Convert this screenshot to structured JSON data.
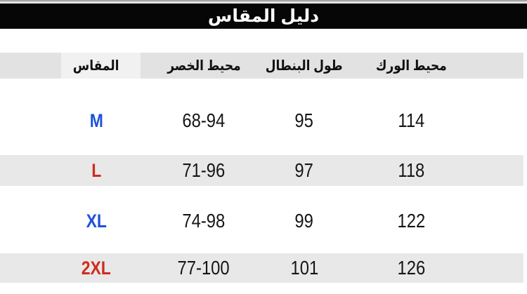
{
  "title": "دليل المقاس",
  "colors": {
    "size_blue": "#1c52d9",
    "size_red": "#cf2c1e"
  },
  "table": {
    "columns": [
      {
        "key": "size",
        "label": "المقاس"
      },
      {
        "key": "waist",
        "label": "محيط الخصر"
      },
      {
        "key": "length",
        "label": "طول البنطال"
      },
      {
        "key": "hip",
        "label": "محيط الورك"
      }
    ],
    "rows": [
      {
        "size": "M",
        "size_color": "#1c52d9",
        "waist": "68-94",
        "length": "95",
        "hip": "114"
      },
      {
        "size": "L",
        "size_color": "#cf2c1e",
        "waist": "71-96",
        "length": "97",
        "hip": "118"
      },
      {
        "size": "XL",
        "size_color": "#1c52d9",
        "waist": "74-98",
        "length": "99",
        "hip": "122"
      },
      {
        "size": "2XL",
        "size_color": "#cf2c1e",
        "waist": "77-100",
        "length": "101",
        "hip": "126"
      }
    ]
  }
}
